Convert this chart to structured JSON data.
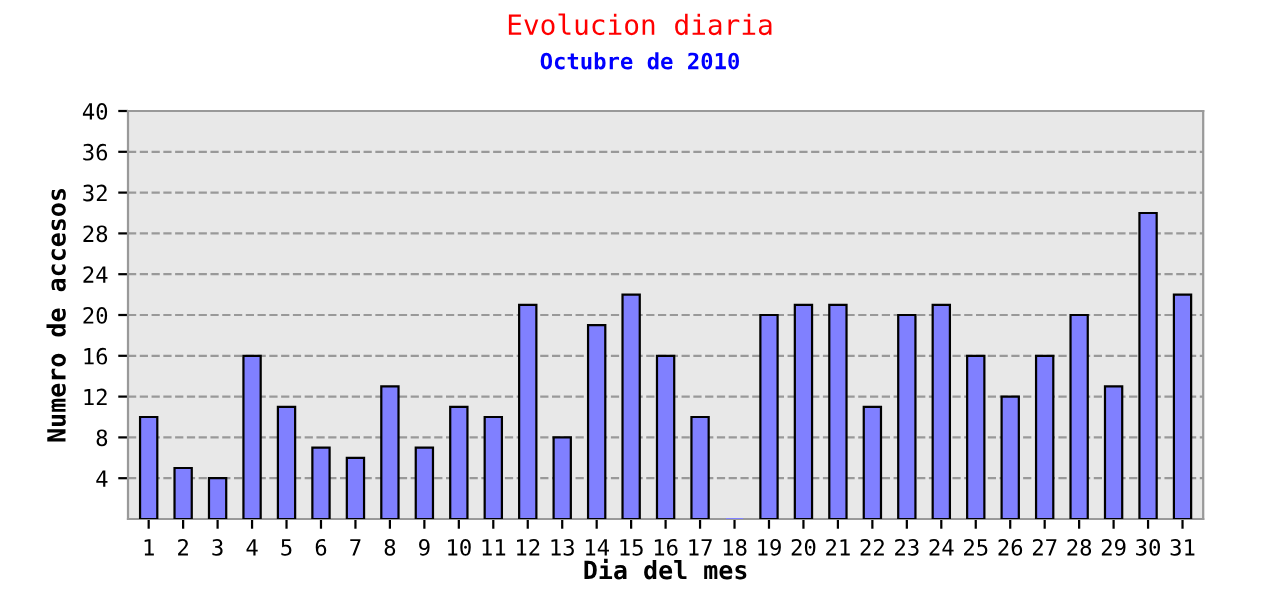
{
  "chart_data": {
    "type": "bar",
    "title": "Evolucion diaria",
    "subtitle": "Octubre de 2010",
    "xlabel": "Dia del mes",
    "ylabel": "Numero de accesos",
    "categories": [
      "1",
      "2",
      "3",
      "4",
      "5",
      "6",
      "7",
      "8",
      "9",
      "10",
      "11",
      "12",
      "13",
      "14",
      "15",
      "16",
      "17",
      "18",
      "19",
      "20",
      "21",
      "22",
      "23",
      "24",
      "25",
      "26",
      "27",
      "28",
      "29",
      "30",
      "31"
    ],
    "values": [
      10,
      5,
      4,
      16,
      11,
      7,
      6,
      13,
      7,
      11,
      10,
      21,
      8,
      19,
      22,
      16,
      10,
      0,
      20,
      21,
      21,
      11,
      20,
      21,
      16,
      12,
      16,
      20,
      13,
      30,
      22
    ],
    "color": "#8080ff",
    "ylim": [
      0,
      40
    ],
    "yticks": [
      4,
      8,
      12,
      16,
      20,
      24,
      28,
      32,
      36,
      40
    ],
    "grid": "y"
  }
}
